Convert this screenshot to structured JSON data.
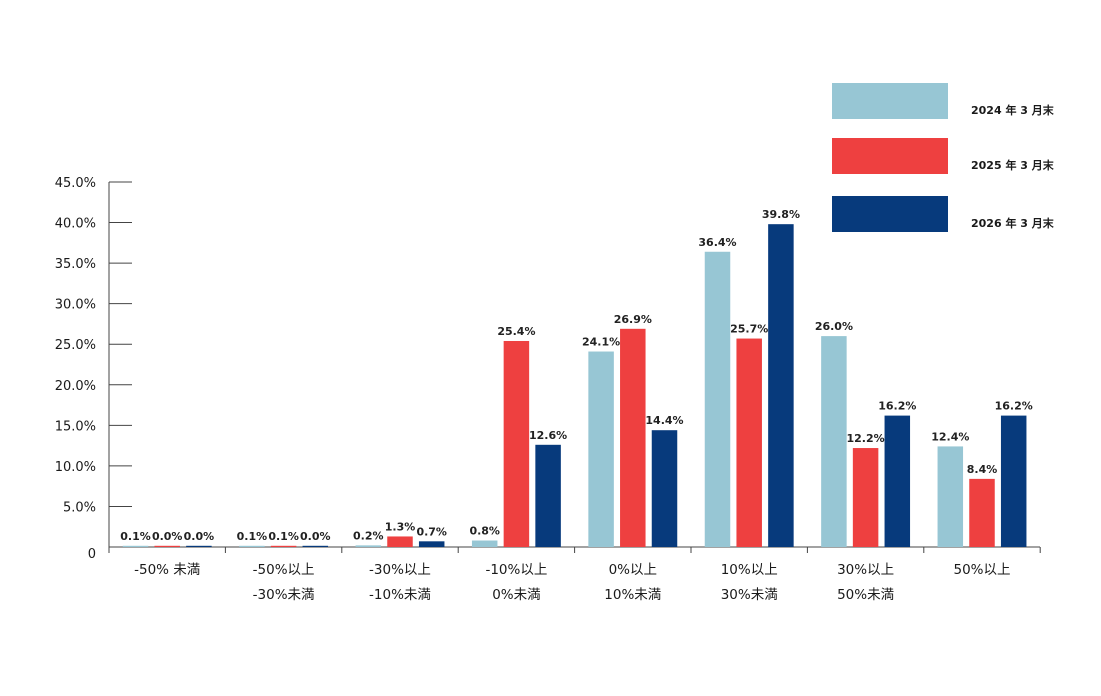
{
  "chart_data": {
    "type": "bar",
    "categories": [
      [
        "-50% 未満",
        ""
      ],
      [
        "-50%以上",
        "-30%未満"
      ],
      [
        "-30%以上",
        "-10%未満"
      ],
      [
        "-10%以上",
        "0%未満"
      ],
      [
        "0%以上",
        "10%未満"
      ],
      [
        "10%以上",
        "30%未満"
      ],
      [
        "30%以上",
        "50%未満"
      ],
      [
        "50%以上",
        ""
      ]
    ],
    "series": [
      {
        "name": "2024 年 3 月末",
        "color": "#97c6d4",
        "values": [
          0.1,
          0.1,
          0.2,
          0.8,
          24.1,
          36.4,
          26.0,
          12.4
        ],
        "labels": [
          "0.1%",
          "0.1%",
          "0.2%",
          "0.8%",
          "24.1%",
          "36.4%",
          "26.0%",
          "12.4%"
        ]
      },
      {
        "name": "2025 年 3 月末",
        "color": "#ee4040",
        "values": [
          0.0,
          0.1,
          1.3,
          25.4,
          26.9,
          25.7,
          12.2,
          8.4
        ],
        "labels": [
          "0.0%",
          "0.1%",
          "1.3%",
          "25.4%",
          "26.9%",
          "25.7%",
          "12.2%",
          "8.4%"
        ]
      },
      {
        "name": "2026 年 3 月末",
        "color": "#073a7c",
        "values": [
          0.0,
          0.0,
          0.7,
          12.6,
          14.4,
          39.8,
          16.2,
          16.2
        ],
        "labels": [
          "0.0%",
          "0.0%",
          "0.7%",
          "12.6%",
          "14.4%",
          "39.8%",
          "16.2%",
          "16.2%"
        ]
      }
    ],
    "yticks": [
      {
        "value": 0,
        "label": "0"
      },
      {
        "value": 5,
        "label": "5.0%"
      },
      {
        "value": 10,
        "label": "10.0%"
      },
      {
        "value": 15,
        "label": "15.0%"
      },
      {
        "value": 20,
        "label": "20.0%"
      },
      {
        "value": 25,
        "label": "25.0%"
      },
      {
        "value": 30,
        "label": "30.0%"
      },
      {
        "value": 35,
        "label": "35.0%"
      },
      {
        "value": 40,
        "label": "40.0%"
      },
      {
        "value": 45,
        "label": "45.0%"
      }
    ],
    "ylim": [
      0,
      45
    ],
    "title": "",
    "xlabel": "",
    "ylabel": "",
    "grid": false,
    "legend_position": "top-right"
  }
}
